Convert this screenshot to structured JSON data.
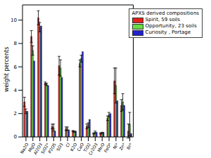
{
  "chart_data": {
    "type": "bar",
    "y_label": "weight percents",
    "legend_title": "APXS derived compositions",
    "legend": "upper right",
    "categories": [
      "Na2O",
      "MgO",
      "Al2O3",
      "SiO2*",
      "P2O5",
      "SO3",
      "Cl",
      "K2O",
      "CaO",
      "TiO2",
      "Cr2O3",
      "MnO",
      "FeO*",
      "Ni*",
      "Zn*",
      "Br*"
    ],
    "ylim": [
      0,
      11.3
    ],
    "yticks": [
      0,
      2,
      4,
      6,
      8,
      10
    ],
    "series": [
      {
        "name": "Spirit, 59 soils",
        "color": "#e3201b",
        "values": [
          3.0,
          8.6,
          10.2,
          4.6,
          0.9,
          6.1,
          0.7,
          0.5,
          6.3,
          0.9,
          0.3,
          0.3,
          1.6,
          4.8,
          2.7,
          0.5
        ],
        "errors": [
          0.4,
          0.5,
          0.6,
          0.1,
          0.2,
          0.8,
          0.15,
          0.05,
          0.3,
          0.2,
          0.05,
          0.05,
          0.2,
          1.1,
          0.5,
          0.6
        ]
      },
      {
        "name": "Opportunity, 23 soils",
        "color": "#66dd44",
        "values": [
          2.2,
          7.4,
          9.4,
          4.5,
          0.8,
          5.9,
          0.7,
          0.45,
          6.7,
          1.0,
          0.4,
          0.35,
          1.9,
          4.4,
          3.0,
          1.1
        ],
        "errors": [
          0.2,
          0.4,
          0.4,
          0.1,
          0.3,
          0.7,
          0.15,
          0.05,
          0.3,
          0.2,
          0.1,
          0.05,
          0.2,
          1.5,
          0.7,
          1.0
        ]
      },
      {
        "name": "Curiosity , Portage",
        "color": "#1f22cc",
        "values": [
          2.2,
          6.5,
          9.5,
          4.4,
          0.5,
          5.1,
          0.6,
          0.5,
          7.3,
          1.5,
          0.4,
          0.4,
          2.0,
          3.1,
          2.7,
          0.3
        ]
      }
    ]
  }
}
